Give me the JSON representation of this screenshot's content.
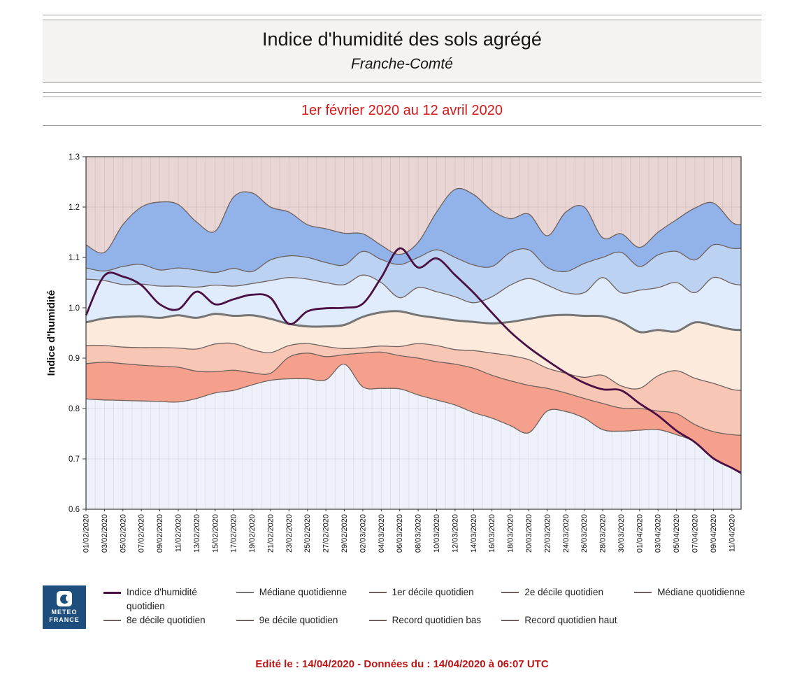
{
  "header": {
    "title": "Indice d'humidité des sols agrégé",
    "subtitle": "Franche-Comté",
    "period": "1er février 2020 au 12 avril 2020"
  },
  "footer": {
    "text": "Edité le : 14/04/2020 - Données du : 14/04/2020 à 06:07 UTC"
  },
  "logo": {
    "line1": "METEO",
    "line2": "FRANCE",
    "bg": "#1d4e7e"
  },
  "legend": {
    "rows": [
      [
        {
          "label": "Indice d'humidité quotidien",
          "color": "#4a1043",
          "thickness": 3
        },
        {
          "label": "Médiane quotidienne",
          "color": "#757575",
          "thickness": 2
        },
        {
          "label": "1er décile quotidien",
          "color": "#6f625e",
          "thickness": 2
        },
        {
          "label": "2e décile quotidien",
          "color": "#6f625e",
          "thickness": 2
        },
        {
          "label": "Médiane quotidienne",
          "color": "#6f625e",
          "thickness": 2
        }
      ],
      [
        {
          "label": "8e décile quotidien",
          "color": "#6f625e",
          "thickness": 2
        },
        {
          "label": "9e décile quotidien",
          "color": "#6f625e",
          "thickness": 2
        },
        {
          "label": "Record quotidien bas",
          "color": "#6f625e",
          "thickness": 2
        },
        {
          "label": "Record quotidien haut",
          "color": "#6f625e",
          "thickness": 2
        }
      ]
    ]
  },
  "chart_data": {
    "type": "area",
    "title": "Indice d'humidité des sols agrégé — Franche-Comté",
    "ylabel": "Indice d'humidité",
    "ylim": [
      0.6,
      1.3
    ],
    "yticks": [
      "1.3",
      "1.2",
      "1.1",
      "1.0",
      "0.9",
      "0.8",
      "0.7",
      "0.6"
    ],
    "x_tick_days": [
      0,
      2,
      4,
      6,
      8,
      10,
      12,
      14,
      16,
      18,
      20,
      22,
      24,
      26,
      28,
      30,
      32,
      34,
      36,
      38,
      40,
      42,
      44,
      46,
      48,
      50,
      52,
      54,
      56,
      58,
      60,
      62,
      64,
      66,
      68,
      70
    ],
    "x_tick_labels": [
      "01/02/2020",
      "03/02/2020",
      "05/02/2020",
      "07/02/2020",
      "09/02/2020",
      "11/02/2020",
      "13/02/2020",
      "15/02/2020",
      "17/02/2020",
      "19/02/2020",
      "21/02/2020",
      "23/02/2020",
      "25/02/2020",
      "27/02/2020",
      "29/02/2020",
      "02/03/2020",
      "04/03/2020",
      "06/03/2020",
      "08/03/2020",
      "10/03/2020",
      "12/03/2020",
      "14/03/2020",
      "16/03/2020",
      "18/03/2020",
      "20/03/2020",
      "22/03/2020",
      "24/03/2020",
      "26/03/2020",
      "28/03/2020",
      "30/03/2020",
      "01/04/2020",
      "03/04/2020",
      "05/04/2020",
      "07/04/2020",
      "09/04/2020",
      "11/04/2020"
    ],
    "sample_days": [
      0,
      2,
      4,
      6,
      8,
      10,
      12,
      14,
      16,
      18,
      20,
      22,
      24,
      26,
      28,
      30,
      32,
      34,
      36,
      38,
      40,
      42,
      44,
      46,
      48,
      50,
      52,
      54,
      56,
      58,
      60,
      62,
      64,
      66,
      68,
      70,
      71
    ],
    "series": {
      "indice": [
        0.985,
        1.064,
        1.062,
        1.045,
        1.007,
        0.997,
        1.032,
        1.007,
        1.017,
        1.026,
        1.02,
        0.968,
        0.993,
        0.999,
        1.0,
        1.008,
        1.06,
        1.118,
        1.08,
        1.098,
        1.065,
        1.03,
        0.99,
        0.952,
        0.921,
        0.895,
        0.871,
        0.851,
        0.838,
        0.836,
        0.81,
        0.786,
        0.756,
        0.733,
        0.701,
        0.682,
        0.672
      ],
      "record_haut": [
        1.125,
        1.11,
        1.165,
        1.2,
        1.21,
        1.205,
        1.17,
        1.152,
        1.22,
        1.228,
        1.2,
        1.19,
        1.165,
        1.157,
        1.148,
        1.147,
        1.124,
        1.106,
        1.13,
        1.19,
        1.235,
        1.225,
        1.193,
        1.177,
        1.186,
        1.143,
        1.19,
        1.2,
        1.139,
        1.147,
        1.12,
        1.15,
        1.175,
        1.198,
        1.208,
        1.17,
        1.165
      ],
      "decile9": [
        1.079,
        1.073,
        1.082,
        1.086,
        1.075,
        1.079,
        1.075,
        1.07,
        1.078,
        1.072,
        1.095,
        1.103,
        1.1,
        1.09,
        1.085,
        1.112,
        1.096,
        1.086,
        1.1,
        1.115,
        1.1,
        1.085,
        1.082,
        1.11,
        1.115,
        1.08,
        1.072,
        1.088,
        1.1,
        1.11,
        1.082,
        1.105,
        1.112,
        1.095,
        1.125,
        1.118,
        1.118
      ],
      "decile8": [
        1.057,
        1.054,
        1.046,
        1.047,
        1.043,
        1.043,
        1.041,
        1.045,
        1.043,
        1.048,
        1.054,
        1.06,
        1.057,
        1.05,
        1.046,
        1.065,
        1.05,
        1.02,
        1.04,
        1.032,
        1.022,
        1.01,
        1.022,
        1.045,
        1.058,
        1.045,
        1.03,
        1.03,
        1.06,
        1.03,
        1.035,
        1.04,
        1.05,
        1.03,
        1.06,
        1.048,
        1.045
      ],
      "mediane": [
        0.971,
        0.979,
        0.982,
        0.983,
        0.98,
        0.985,
        0.98,
        0.988,
        0.984,
        0.985,
        0.978,
        0.968,
        0.963,
        0.963,
        0.966,
        0.982,
        0.991,
        0.993,
        0.985,
        0.98,
        0.975,
        0.972,
        0.969,
        0.972,
        0.978,
        0.984,
        0.986,
        0.984,
        0.983,
        0.972,
        0.952,
        0.956,
        0.953,
        0.971,
        0.965,
        0.957,
        0.956
      ],
      "decile2": [
        0.925,
        0.925,
        0.922,
        0.921,
        0.921,
        0.92,
        0.918,
        0.928,
        0.929,
        0.917,
        0.911,
        0.925,
        0.929,
        0.923,
        0.919,
        0.921,
        0.924,
        0.923,
        0.929,
        0.925,
        0.917,
        0.915,
        0.91,
        0.905,
        0.897,
        0.88,
        0.87,
        0.862,
        0.866,
        0.845,
        0.84,
        0.865,
        0.875,
        0.86,
        0.85,
        0.838,
        0.836
      ],
      "decile1": [
        0.889,
        0.892,
        0.889,
        0.886,
        0.884,
        0.882,
        0.874,
        0.873,
        0.876,
        0.871,
        0.87,
        0.902,
        0.91,
        0.903,
        0.907,
        0.91,
        0.912,
        0.905,
        0.9,
        0.893,
        0.888,
        0.88,
        0.866,
        0.855,
        0.846,
        0.84,
        0.831,
        0.82,
        0.81,
        0.801,
        0.8,
        0.795,
        0.79,
        0.768,
        0.754,
        0.748,
        0.747
      ],
      "record_bas": [
        0.819,
        0.817,
        0.816,
        0.815,
        0.814,
        0.813,
        0.82,
        0.831,
        0.836,
        0.847,
        0.856,
        0.859,
        0.859,
        0.857,
        0.888,
        0.843,
        0.84,
        0.839,
        0.827,
        0.817,
        0.807,
        0.792,
        0.781,
        0.766,
        0.752,
        0.795,
        0.794,
        0.781,
        0.758,
        0.755,
        0.757,
        0.758,
        0.748,
        0.733,
        0.7,
        0.682,
        0.674
      ]
    },
    "colors": {
      "above_record": "#e9d5d3",
      "below_record": "#eef1f9",
      "band_haut_d9": "#92b2ea",
      "band_d9_d8": "#bcd2f2",
      "band_d8_med": "#e0ebfb",
      "band_med_d2": "#fcebdd",
      "band_d2_d1": "#f8c6b4",
      "band_d1_bas": "#f5a08d",
      "boundary_line": "#6f625e",
      "mediane_line": "#757575",
      "indice_line": "#4a1043",
      "plot_border": "#3a3a3a"
    },
    "grid": true,
    "legend_position": "bottom"
  }
}
